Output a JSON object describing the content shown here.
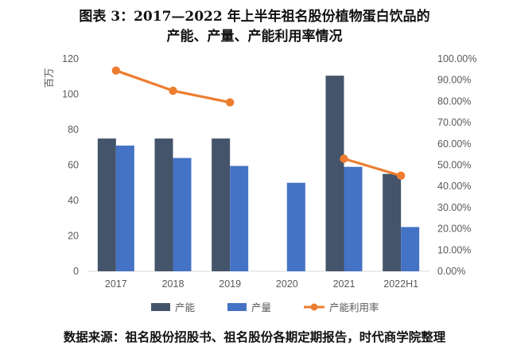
{
  "title_line1": "图表 3：2017—2022 年上半年祖名股份植物蛋白饮品的",
  "title_line2": "产能、产量、产能利用率情况",
  "source": "数据来源：祖名股份招股书、祖名股份各期定期报告，时代商学院整理",
  "chart_data": {
    "type": "bar",
    "categories": [
      "2017",
      "2018",
      "2019",
      "2020",
      "2021",
      "2022H1"
    ],
    "ylabel": "百万",
    "ylim": [
      0,
      120
    ],
    "yticks": [
      "0",
      "20",
      "40",
      "60",
      "80",
      "100",
      "120"
    ],
    "y2lim": [
      0,
      1
    ],
    "y2ticks": [
      "0.00%",
      "10.00%",
      "20.00%",
      "30.00%",
      "40.00%",
      "50.00%",
      "60.00%",
      "70.00%",
      "80.00%",
      "90.00%",
      "100.00%"
    ],
    "legend_position": "bottom",
    "grid": false,
    "series": [
      {
        "name": "产能",
        "type": "bar",
        "color": "#44546a",
        "values": [
          75,
          75,
          75,
          null,
          110.5,
          55
        ]
      },
      {
        "name": "产量",
        "type": "bar",
        "color": "#4472c4",
        "values": [
          71,
          64,
          59.5,
          50,
          59,
          25
        ]
      },
      {
        "name": "产能利用率",
        "type": "line",
        "axis": "secondary",
        "color": "#ed7d31",
        "values": [
          0.945,
          0.85,
          0.795,
          null,
          0.53,
          0.45
        ]
      }
    ]
  }
}
